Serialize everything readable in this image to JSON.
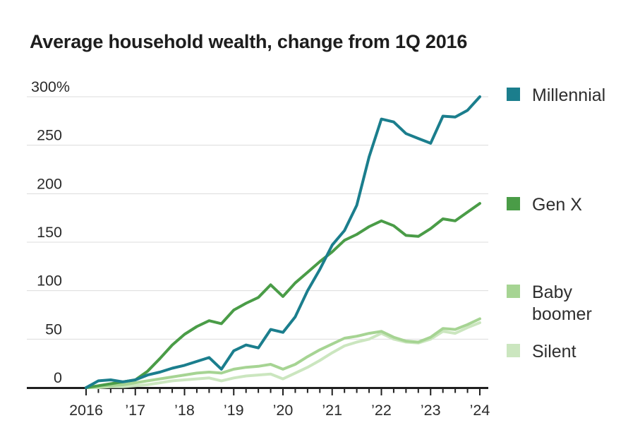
{
  "title": "Average household wealth, change from 1Q 2016",
  "chart_data": {
    "type": "line",
    "title": "Average household wealth, change from 1Q 2016",
    "x_unit": "quarter",
    "x_range": [
      "2016 Q1",
      "2024 Q1"
    ],
    "x_tick_labels": [
      "2016",
      "’17",
      "’18",
      "’19",
      "’20",
      "’21",
      "’22",
      "’23",
      "’24"
    ],
    "y_ticks": [
      0,
      50,
      100,
      150,
      200,
      250,
      300
    ],
    "y_tick_labels": [
      "0",
      "50",
      "100",
      "150",
      "200",
      "250",
      "300%"
    ],
    "ylim": [
      0,
      300
    ],
    "unit": "percent change",
    "grid": "horizontal",
    "legend_position": "right",
    "series": [
      {
        "name": "Millennial",
        "color": "#1b7e8d",
        "values": [
          0,
          7,
          8,
          6,
          8,
          13,
          16,
          20,
          23,
          27,
          31,
          19,
          38,
          44,
          41,
          60,
          57,
          73,
          100,
          122,
          147,
          162,
          188,
          238,
          277,
          274,
          262,
          257,
          252,
          280,
          279,
          286,
          300
        ]
      },
      {
        "name": "Gen X",
        "color": "#4a9c47",
        "values": [
          0,
          2,
          4,
          6,
          8,
          17,
          30,
          44,
          55,
          63,
          69,
          66,
          80,
          87,
          93,
          106,
          94,
          108,
          119,
          130,
          140,
          152,
          158,
          166,
          172,
          167,
          157,
          156,
          164,
          174,
          172,
          181,
          190
        ]
      },
      {
        "name": "Baby boomer",
        "color": "#a6d493",
        "values": [
          0,
          1,
          2,
          3,
          5,
          7,
          9,
          11,
          13,
          15,
          16,
          15,
          19,
          21,
          22,
          24,
          19,
          24,
          32,
          39,
          45,
          51,
          53,
          56,
          58,
          52,
          48,
          47,
          52,
          61,
          60,
          65,
          71
        ]
      },
      {
        "name": "Silent",
        "color": "#cbe6bf",
        "values": [
          0,
          0,
          1,
          1,
          2,
          3,
          5,
          7,
          8,
          9,
          10,
          7,
          10,
          12,
          13,
          14,
          9,
          15,
          21,
          28,
          36,
          43,
          47,
          50,
          56,
          50,
          47,
          46,
          50,
          58,
          56,
          62,
          67
        ]
      }
    ]
  }
}
